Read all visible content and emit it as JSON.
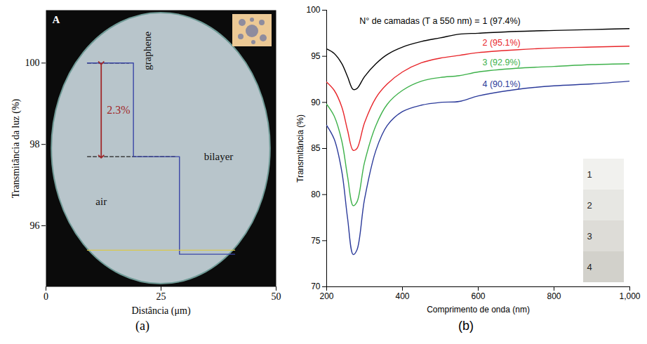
{
  "chart_data": [
    {
      "type": "line",
      "panel_label": "(a)",
      "title": "A",
      "x_label": "Distância (μm)",
      "y_label": "Transmitância da luz (%)",
      "xlim": [
        0,
        50
      ],
      "xticks": [
        0,
        25,
        50
      ],
      "ylim": [
        94.5,
        101.3
      ],
      "yticks": [
        96,
        98,
        100
      ],
      "series": [
        {
          "color": "#3a46a6",
          "x": [
            9,
            19,
            19,
            29,
            29,
            41
          ],
          "values": [
            100,
            100,
            97.7,
            97.7,
            95.3,
            95.3
          ]
        },
        {
          "color": "#d9c84a",
          "x": [
            9,
            41
          ],
          "values": [
            95.4,
            95.4
          ]
        }
      ],
      "reference_lines": [
        {
          "y": 100,
          "x": [
            9,
            18
          ]
        },
        {
          "y": 97.7,
          "x": [
            9,
            28
          ]
        }
      ],
      "bracket": {
        "x": 12,
        "y": [
          100,
          97.7
        ],
        "label": "2.3%",
        "color": "#a0282a"
      },
      "annotations": [
        {
          "text": "air",
          "x": 12,
          "y": 96.6
        },
        {
          "text": "bilayer",
          "x": 37.5,
          "y": 97.7
        }
      ],
      "rotated_annotations": [
        {
          "text": "graphene",
          "x": 22,
          "y": 100.3
        }
      ]
    },
    {
      "type": "line",
      "panel_label": "(b)",
      "x_label": "Comprimento de onda (nm)",
      "y_label": "Transmitância (%)",
      "xlim": [
        200,
        1000
      ],
      "xticks": [
        200,
        400,
        600,
        800,
        {
          "value": 1000,
          "label": "1,000"
        }
      ],
      "ylim": [
        70,
        100
      ],
      "yticks": [
        70,
        75,
        80,
        85,
        90,
        95,
        100
      ],
      "legend": "top right",
      "legend_title": "N° de camadas (T a 550 nm) =",
      "x": [
        200,
        220,
        240,
        255,
        270,
        280,
        300,
        330,
        360,
        400,
        450,
        500,
        550,
        600,
        700,
        800,
        900,
        1000
      ],
      "series": [
        {
          "name": "1 (97.4%)",
          "color": "#000000",
          "values": [
            95.8,
            95.3,
            94.2,
            92.8,
            91.4,
            91.5,
            92.8,
            94.2,
            95.2,
            96.0,
            96.6,
            97.0,
            97.4,
            97.5,
            97.7,
            97.8,
            97.9,
            98.0
          ]
        },
        {
          "name": "2 (95.1%)",
          "color": "#e8252a",
          "values": [
            92.2,
            91.3,
            89.5,
            87.0,
            84.8,
            85.0,
            87.8,
            90.5,
            92.0,
            93.3,
            94.3,
            94.8,
            95.1,
            95.4,
            95.7,
            95.9,
            96.0,
            96.1
          ]
        },
        {
          "name": "3 (92.9%)",
          "color": "#3db14a",
          "values": [
            89.8,
            88.5,
            85.8,
            82.0,
            78.8,
            79.2,
            83.5,
            87.5,
            89.8,
            91.3,
            92.3,
            92.7,
            92.9,
            93.3,
            93.7,
            93.9,
            94.1,
            94.2
          ]
        },
        {
          "name": "4 (90.1%)",
          "color": "#2b3a9a",
          "values": [
            87.5,
            86.0,
            82.5,
            77.5,
            73.5,
            74.0,
            79.5,
            84.8,
            87.5,
            89.0,
            89.7,
            90.0,
            90.1,
            90.7,
            91.4,
            91.8,
            92.0,
            92.3
          ]
        }
      ],
      "inset_labels": [
        "1",
        "2",
        "3",
        "4"
      ]
    }
  ]
}
